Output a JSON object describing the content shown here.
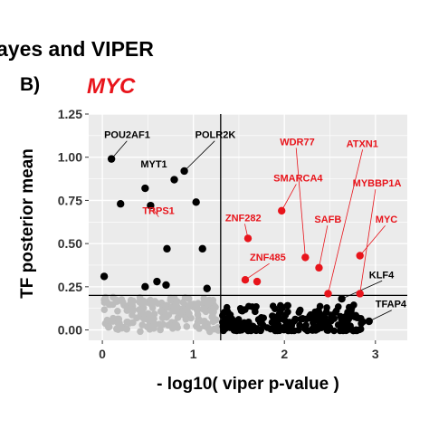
{
  "header": {
    "title_fragment": "ayes and VIPER",
    "panel_label": "B)",
    "gene": "MYC"
  },
  "colors": {
    "significant": "#e8141b",
    "tf": "#000000",
    "background_points": "#bdbdbd",
    "panel_bg": "#ebebeb",
    "grid": "#ffffff"
  },
  "chart_data": {
    "type": "scatter",
    "xlabel": "- log10( viper p-value )",
    "ylabel": "TF posterior mean",
    "xlim": [
      -0.15,
      3.35
    ],
    "ylim": [
      -0.06,
      1.25
    ],
    "x_ticks": [
      "0",
      "1",
      "2",
      "3"
    ],
    "x_tick_values": [
      0,
      1,
      2,
      3
    ],
    "y_ticks": [
      "0.00",
      "0.25",
      "0.50",
      "0.75",
      "1.00",
      "1.25"
    ],
    "y_tick_values": [
      0,
      0.25,
      0.5,
      0.75,
      1.0,
      1.25
    ],
    "thresholds": {
      "x": 1.3,
      "y": 0.2
    },
    "grid": true,
    "legend": "none",
    "series": [
      {
        "group": "red",
        "points": [
          {
            "x": 1.6,
            "y": 0.53,
            "label": "ZNF282"
          },
          {
            "x": 1.57,
            "y": 0.29,
            "label": "ZNF485"
          },
          {
            "x": 1.7,
            "y": 0.28
          },
          {
            "x": 1.97,
            "y": 0.69,
            "label": "SMARCA4"
          },
          {
            "x": 2.23,
            "y": 0.42,
            "label": "WDR77"
          },
          {
            "x": 2.38,
            "y": 0.36,
            "label": "SAFB"
          },
          {
            "x": 2.48,
            "y": 0.21,
            "label": "ATXN1"
          },
          {
            "x": 2.83,
            "y": 0.43,
            "label": "MYC"
          },
          {
            "x": 2.83,
            "y": 0.21,
            "label": "MYBBP1A"
          }
        ]
      },
      {
        "group": "black",
        "points": [
          {
            "x": 0.1,
            "y": 0.99,
            "label": "POU2AF1"
          },
          {
            "x": 0.9,
            "y": 0.92,
            "label": "POLR2K"
          },
          {
            "x": 0.79,
            "y": 0.87,
            "label": "MYT1"
          },
          {
            "x": 0.47,
            "y": 0.82
          },
          {
            "x": 0.2,
            "y": 0.73
          },
          {
            "x": 0.53,
            "y": 0.72,
            "label": "TRPS1"
          },
          {
            "x": 1.03,
            "y": 0.74
          },
          {
            "x": 0.71,
            "y": 0.47
          },
          {
            "x": 1.1,
            "y": 0.47
          },
          {
            "x": 0.02,
            "y": 0.31
          },
          {
            "x": 0.47,
            "y": 0.25
          },
          {
            "x": 0.6,
            "y": 0.28
          },
          {
            "x": 0.7,
            "y": 0.26
          },
          {
            "x": 1.15,
            "y": 0.24
          },
          {
            "x": 2.93,
            "y": 0.05,
            "label": "TFAP4"
          },
          {
            "x": 2.63,
            "y": 0.18,
            "label": "KLF4"
          }
        ]
      }
    ],
    "annotations": [
      {
        "text": "POU2AF1",
        "x": 0.02,
        "y": 1.11,
        "color": "black",
        "anchor_point": [
          0.1,
          0.99
        ]
      },
      {
        "text": "POLR2K",
        "x": 1.02,
        "y": 1.11,
        "color": "black",
        "anchor_point": [
          0.9,
          0.92
        ]
      },
      {
        "text": "MYT1",
        "x": 0.42,
        "y": 0.94,
        "color": "black"
      },
      {
        "text": "WDR77",
        "x": 1.95,
        "y": 1.07,
        "color": "red",
        "anchor_point": [
          2.23,
          0.42
        ]
      },
      {
        "text": "ATXN1",
        "x": 2.68,
        "y": 1.06,
        "color": "red",
        "anchor_point": [
          2.48,
          0.21
        ]
      },
      {
        "text": "SMARCA4",
        "x": 1.88,
        "y": 0.86,
        "color": "red",
        "anchor_point": [
          1.97,
          0.69
        ]
      },
      {
        "text": "MYBBP1A",
        "x": 2.75,
        "y": 0.83,
        "color": "red",
        "anchor_point": [
          2.83,
          0.21
        ]
      },
      {
        "text": "TRPS1",
        "x": 0.44,
        "y": 0.67,
        "color": "red",
        "anchor_point": [
          0.53,
          0.72
        ]
      },
      {
        "text": "ZNF282",
        "x": 1.35,
        "y": 0.63,
        "color": "red",
        "anchor_point": [
          1.6,
          0.53
        ]
      },
      {
        "text": "SAFB",
        "x": 2.33,
        "y": 0.62,
        "color": "red",
        "anchor_point": [
          2.38,
          0.36
        ]
      },
      {
        "text": "MYC",
        "x": 3.0,
        "y": 0.62,
        "color": "red",
        "anchor_point": [
          2.83,
          0.43
        ]
      },
      {
        "text": "ZNF485",
        "x": 1.62,
        "y": 0.4,
        "color": "red",
        "anchor_point": [
          1.57,
          0.29
        ]
      },
      {
        "text": "KLF4",
        "x": 2.93,
        "y": 0.3,
        "color": "black",
        "anchor_point": [
          2.63,
          0.18
        ]
      },
      {
        "text": "TFAP4",
        "x": 3.0,
        "y": 0.13,
        "color": "black",
        "anchor_point": [
          2.93,
          0.05
        ]
      }
    ]
  }
}
